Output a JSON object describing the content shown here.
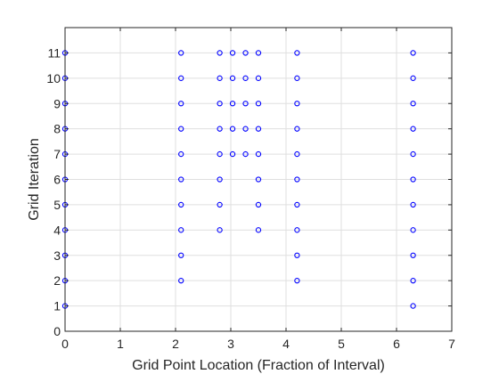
{
  "chart_data": {
    "type": "scatter",
    "title": "",
    "xlabel": "Grid Point Location (Fraction of Interval)",
    "ylabel": "Grid Iteration",
    "xlim": [
      0,
      7
    ],
    "ylim": [
      0,
      12
    ],
    "xticks": [
      "0",
      "1",
      "2",
      "3",
      "4",
      "5",
      "6",
      "7"
    ],
    "yticks": [
      "0",
      "1",
      "2",
      "3",
      "4",
      "5",
      "6",
      "7",
      "8",
      "9",
      "10",
      "11"
    ],
    "grid": true,
    "marker": "circle-open",
    "marker_color": "#0000ff",
    "series": [
      {
        "points": [
          [
            0,
            1
          ],
          [
            6.3,
            1
          ],
          [
            0,
            2
          ],
          [
            2.1,
            2
          ],
          [
            4.2,
            2
          ],
          [
            6.3,
            2
          ],
          [
            0,
            3
          ],
          [
            2.1,
            3
          ],
          [
            4.2,
            3
          ],
          [
            6.3,
            3
          ],
          [
            0,
            4
          ],
          [
            2.1,
            4
          ],
          [
            2.8,
            4
          ],
          [
            3.5,
            4
          ],
          [
            4.2,
            4
          ],
          [
            6.3,
            4
          ],
          [
            0,
            5
          ],
          [
            2.1,
            5
          ],
          [
            2.8,
            5
          ],
          [
            3.5,
            5
          ],
          [
            4.2,
            5
          ],
          [
            6.3,
            5
          ],
          [
            0,
            6
          ],
          [
            2.1,
            6
          ],
          [
            2.8,
            6
          ],
          [
            3.5,
            6
          ],
          [
            4.2,
            6
          ],
          [
            6.3,
            6
          ],
          [
            0,
            7
          ],
          [
            2.1,
            7
          ],
          [
            2.8,
            7
          ],
          [
            3.033,
            7
          ],
          [
            3.267,
            7
          ],
          [
            3.5,
            7
          ],
          [
            4.2,
            7
          ],
          [
            6.3,
            7
          ],
          [
            0,
            8
          ],
          [
            2.1,
            8
          ],
          [
            2.8,
            8
          ],
          [
            3.033,
            8
          ],
          [
            3.267,
            8
          ],
          [
            3.5,
            8
          ],
          [
            4.2,
            8
          ],
          [
            6.3,
            8
          ],
          [
            0,
            9
          ],
          [
            2.1,
            9
          ],
          [
            2.8,
            9
          ],
          [
            3.033,
            9
          ],
          [
            3.267,
            9
          ],
          [
            3.5,
            9
          ],
          [
            4.2,
            9
          ],
          [
            6.3,
            9
          ],
          [
            0,
            10
          ],
          [
            2.1,
            10
          ],
          [
            2.8,
            10
          ],
          [
            3.033,
            10
          ],
          [
            3.267,
            10
          ],
          [
            3.5,
            10
          ],
          [
            4.2,
            10
          ],
          [
            6.3,
            10
          ],
          [
            0,
            11
          ],
          [
            2.1,
            11
          ],
          [
            2.8,
            11
          ],
          [
            3.033,
            11
          ],
          [
            3.267,
            11
          ],
          [
            3.5,
            11
          ],
          [
            4.2,
            11
          ],
          [
            6.3,
            11
          ]
        ]
      }
    ]
  }
}
